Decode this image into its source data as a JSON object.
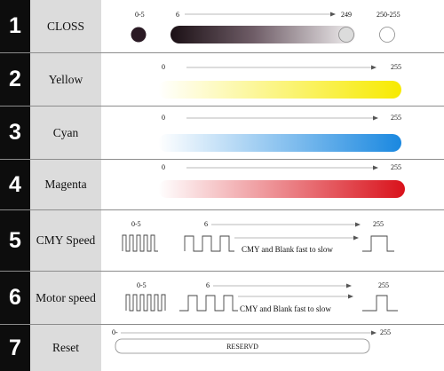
{
  "rows": [
    {
      "number": "1",
      "label": "CLOSS",
      "markers": [
        "0-5",
        "6",
        "249",
        "250-255"
      ]
    },
    {
      "number": "2",
      "label": "Yellow",
      "start": "0",
      "end": "255",
      "color": "#f7ea00"
    },
    {
      "number": "3",
      "label": "Cyan",
      "start": "0",
      "end": "255",
      "color": "#1a88e0"
    },
    {
      "number": "4",
      "label": "Magenta",
      "start": "0",
      "end": "255",
      "color": "#d9121b"
    },
    {
      "number": "5",
      "label": "CMY Speed",
      "markers": [
        "0-5",
        "6",
        "255"
      ],
      "caption": "CMY and Blank fast to slow"
    },
    {
      "number": "6",
      "label": "Motor speed",
      "markers": [
        "0-5",
        "6",
        "255"
      ],
      "caption": "CMY and Blank fast to slow"
    },
    {
      "number": "7",
      "label": "Reset",
      "start": "0-",
      "end": "255",
      "box_text": "RESERVD"
    }
  ],
  "colors": {
    "number_bg": "#0d0d0d",
    "label_bg": "#dcdcdc",
    "closs_dark": "#2a1a24",
    "arrow": "#555555"
  }
}
